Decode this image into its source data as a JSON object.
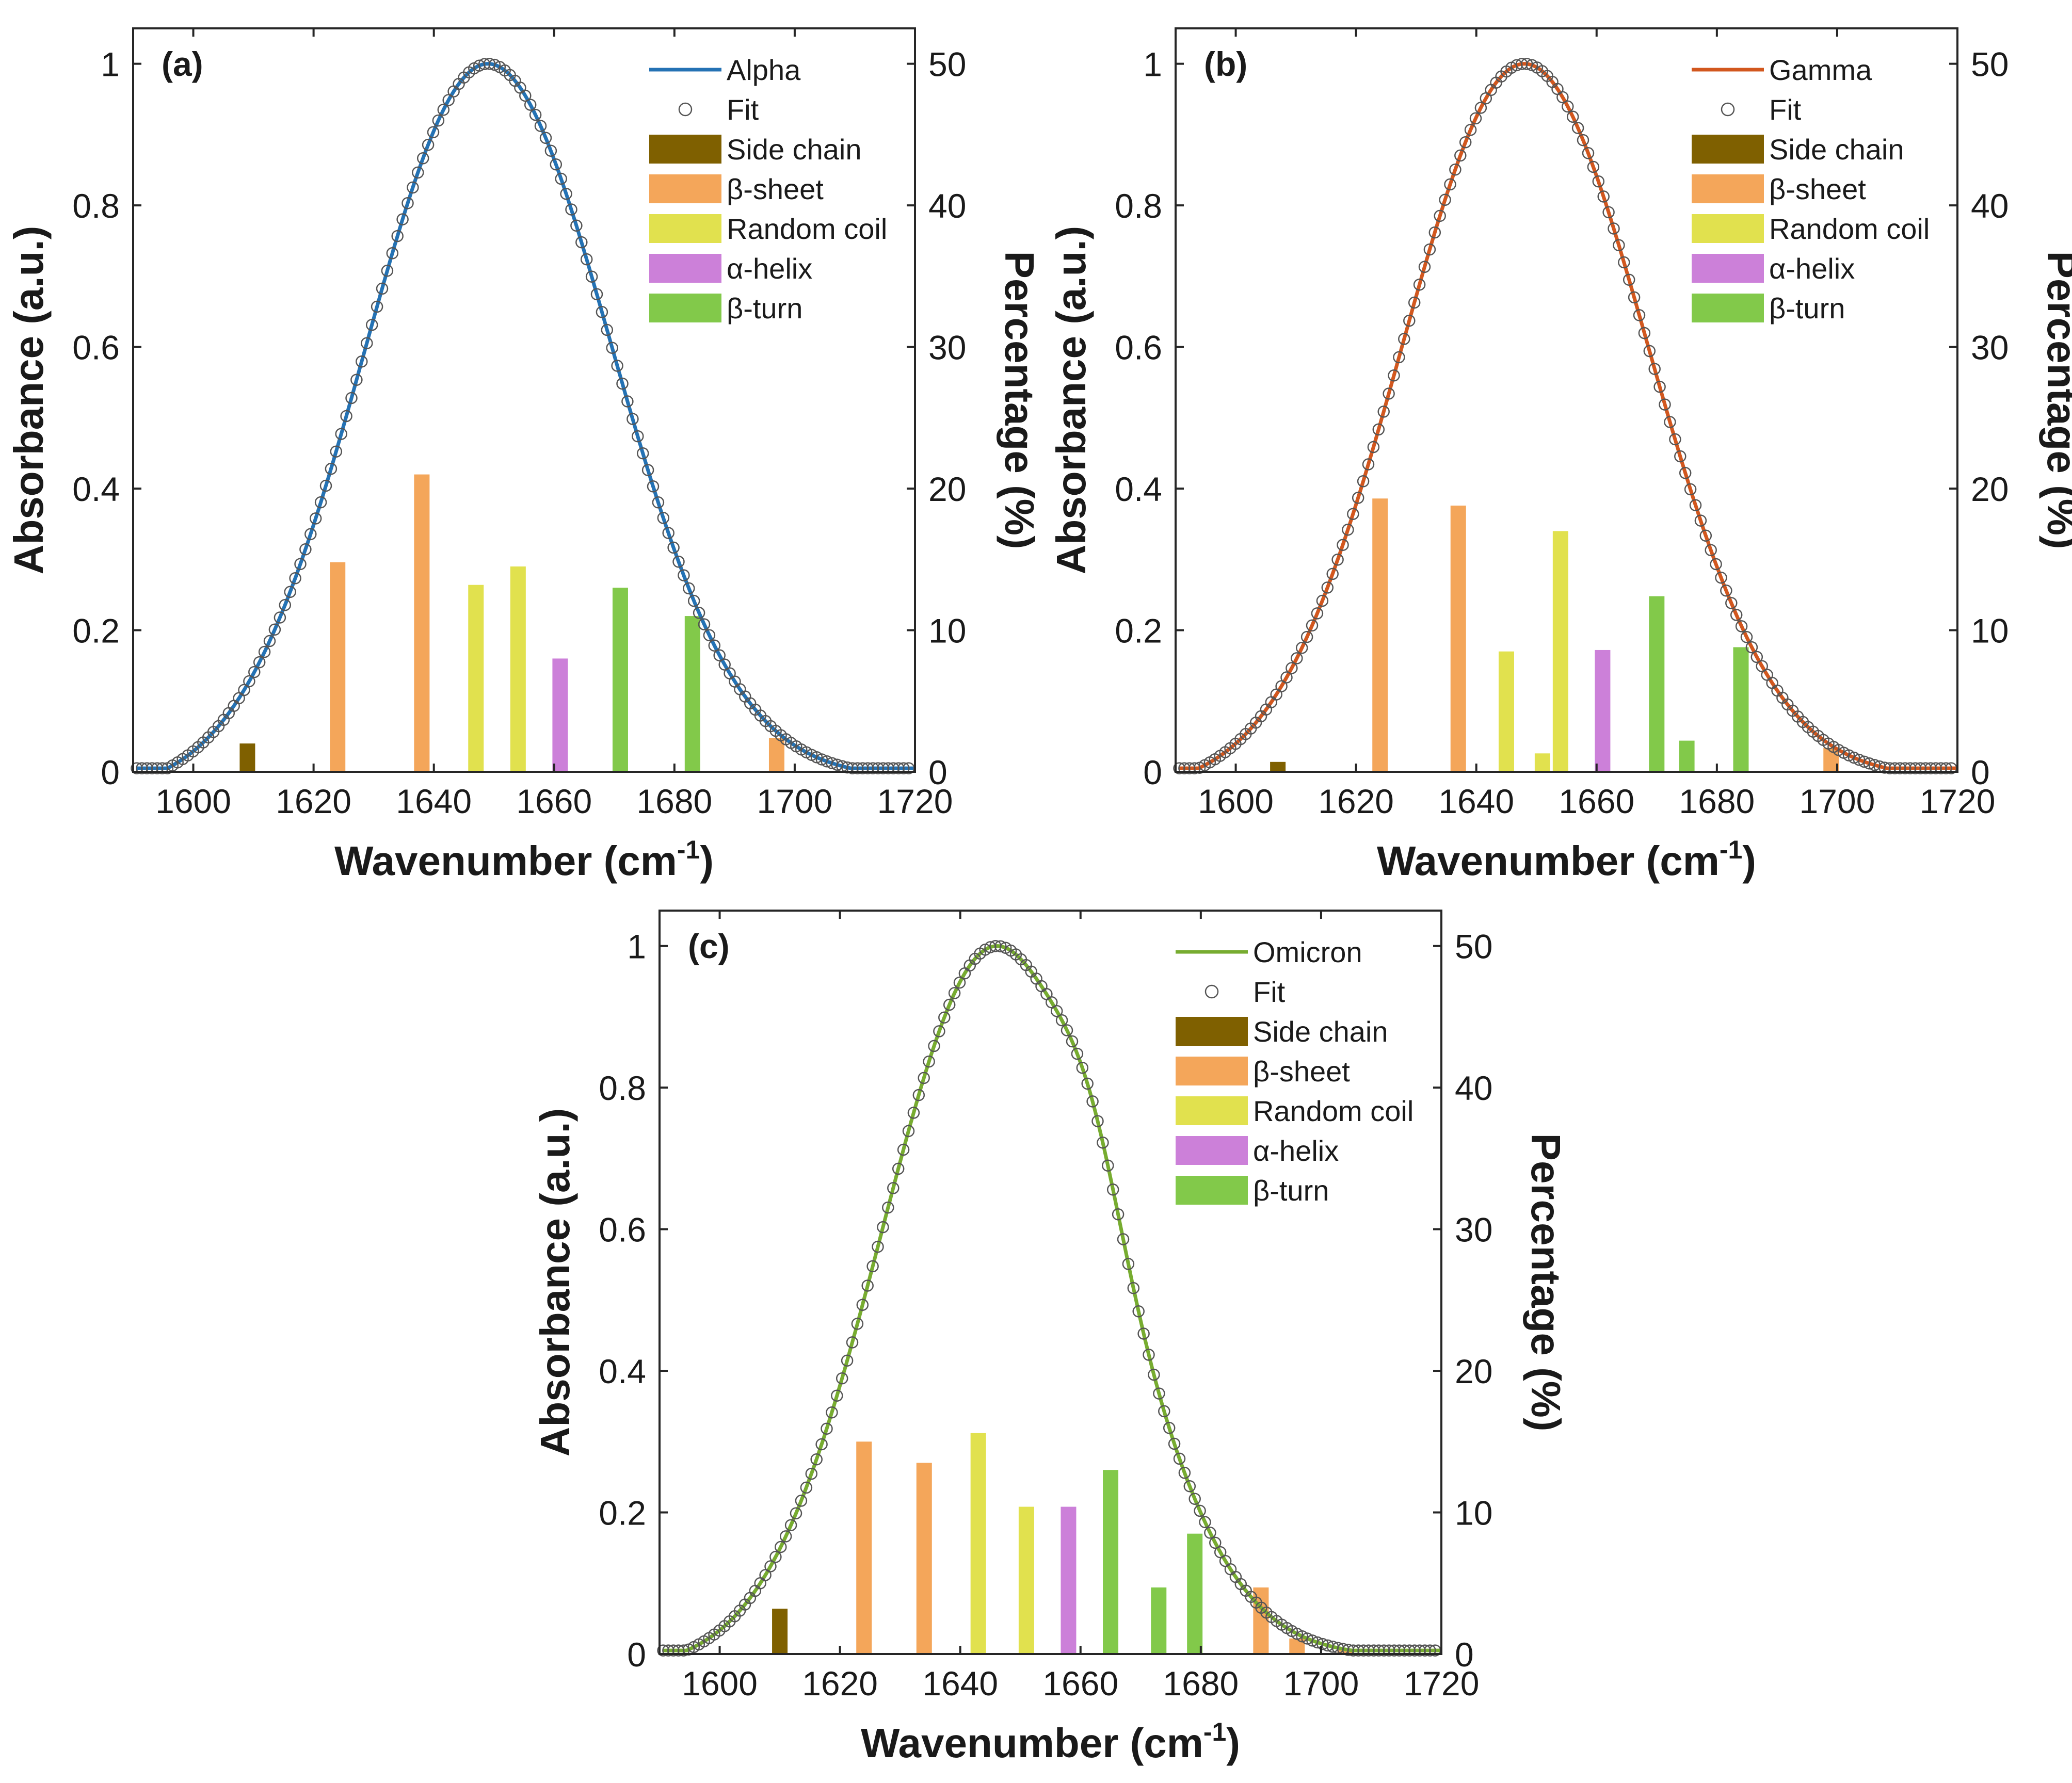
{
  "figure": {
    "legend_labels": [
      "Side chain",
      "β-sheet",
      "Random coil",
      "α-helix",
      "β-turn"
    ],
    "fit_label": "Fit",
    "xlabel": "Wavenumber (cm",
    "xlabel_sup": "-1",
    "xlabel_close": ")",
    "ylabel_left": "Absorbance (a.u.)",
    "ylabel_right": "Percentage (%)"
  },
  "chart_data": [
    {
      "type": "line",
      "panel": "(a)",
      "series_name": "Alpha",
      "line_color": "#2472b4",
      "xlim": [
        1590,
        1720
      ],
      "ylim_left": [
        0,
        1.05
      ],
      "ylim_right": [
        0,
        52.5
      ],
      "xticks": [
        1600,
        1620,
        1640,
        1660,
        1680,
        1700,
        1720
      ],
      "yticks_left": [
        0,
        0.2,
        0.4,
        0.6,
        0.8,
        1
      ],
      "yticks_right": [
        0,
        10,
        20,
        30,
        40,
        50
      ],
      "curve": {
        "center": 1649,
        "sigma": 20.5,
        "start": 1594.5,
        "end": 1712.5
      },
      "bars": [
        {
          "x": 1609,
          "value": 2.0,
          "category": "Side chain"
        },
        {
          "x": 1624,
          "value": 14.8,
          "category": "β-sheet"
        },
        {
          "x": 1638,
          "value": 21.0,
          "category": "β-sheet"
        },
        {
          "x": 1647,
          "value": 13.2,
          "category": "Random coil"
        },
        {
          "x": 1654,
          "value": 14.5,
          "category": "Random coil"
        },
        {
          "x": 1661,
          "value": 8.0,
          "category": "α-helix"
        },
        {
          "x": 1671,
          "value": 13.0,
          "category": "β-turn"
        },
        {
          "x": 1683,
          "value": 11.0,
          "category": "β-turn"
        },
        {
          "x": 1697,
          "value": 2.4,
          "category": "β-sheet"
        }
      ]
    },
    {
      "type": "line",
      "panel": "(b)",
      "series_name": "Gamma",
      "line_color": "#d2571e",
      "xlim": [
        1590,
        1720
      ],
      "ylim_left": [
        0,
        1.05
      ],
      "ylim_right": [
        0,
        52.5
      ],
      "xticks": [
        1600,
        1620,
        1640,
        1660,
        1680,
        1700,
        1720
      ],
      "yticks_left": [
        0,
        0.2,
        0.4,
        0.6,
        0.8,
        1
      ],
      "yticks_right": [
        0,
        10,
        20,
        30,
        40,
        50
      ],
      "curve": {
        "center": 1648,
        "sigma": 20.5,
        "start": 1592.5,
        "end": 1711.5
      },
      "bars": [
        {
          "x": 1607,
          "value": 0.7,
          "category": "Side chain"
        },
        {
          "x": 1624,
          "value": 19.3,
          "category": "β-sheet"
        },
        {
          "x": 1637,
          "value": 18.8,
          "category": "β-sheet"
        },
        {
          "x": 1645,
          "value": 8.5,
          "category": "Random coil"
        },
        {
          "x": 1651,
          "value": 1.3,
          "category": "Random coil"
        },
        {
          "x": 1654,
          "value": 17.0,
          "category": "Random coil"
        },
        {
          "x": 1661,
          "value": 8.6,
          "category": "α-helix"
        },
        {
          "x": 1670,
          "value": 12.4,
          "category": "β-turn"
        },
        {
          "x": 1675,
          "value": 2.2,
          "category": "β-turn"
        },
        {
          "x": 1684,
          "value": 8.8,
          "category": "β-turn"
        },
        {
          "x": 1699,
          "value": 1.7,
          "category": "β-sheet"
        }
      ]
    },
    {
      "type": "line",
      "panel": "(c)",
      "series_name": "Omicron",
      "line_color": "#77ac30",
      "xlim": [
        1590,
        1720
      ],
      "ylim_left": [
        0,
        1.05
      ],
      "ylim_right": [
        0,
        52.5
      ],
      "xticks": [
        1600,
        1620,
        1640,
        1660,
        1680,
        1700,
        1720
      ],
      "yticks_left": [
        0,
        0.2,
        0.4,
        0.6,
        0.8,
        1
      ],
      "yticks_right": [
        0,
        10,
        20,
        30,
        40,
        50
      ],
      "curve": {
        "center": 1646,
        "sigma": 19,
        "start": 1593,
        "end": 1711,
        "shoulder": {
          "center": 1662,
          "amp": 0.08,
          "sigma": 5
        }
      },
      "bars": [
        {
          "x": 1610,
          "value": 3.2,
          "category": "Side chain"
        },
        {
          "x": 1624,
          "value": 15.0,
          "category": "β-sheet"
        },
        {
          "x": 1634,
          "value": 13.5,
          "category": "β-sheet"
        },
        {
          "x": 1643,
          "value": 15.6,
          "category": "Random coil"
        },
        {
          "x": 1651,
          "value": 10.4,
          "category": "Random coil"
        },
        {
          "x": 1658,
          "value": 10.4,
          "category": "α-helix"
        },
        {
          "x": 1665,
          "value": 13.0,
          "category": "β-turn"
        },
        {
          "x": 1673,
          "value": 4.7,
          "category": "β-turn"
        },
        {
          "x": 1679,
          "value": 8.5,
          "category": "β-turn"
        },
        {
          "x": 1690,
          "value": 4.7,
          "category": "β-sheet"
        },
        {
          "x": 1696,
          "value": 1.1,
          "category": "β-sheet"
        },
        {
          "x": 1704,
          "value": 0.3,
          "category": "β-sheet"
        }
      ]
    }
  ],
  "category_colors": {
    "Side chain": "#7f6000",
    "β-sheet": "#f4a65a",
    "Random coil": "#e1e14e",
    "α-helix": "#cc80d9",
    "β-turn": "#82c94a"
  }
}
